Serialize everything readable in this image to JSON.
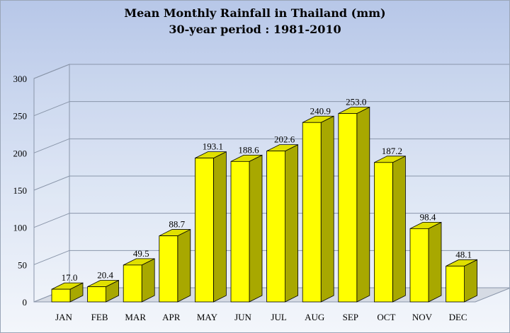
{
  "chart_data": {
    "type": "bar",
    "title": "Mean Monthly Rainfall in Thailand (mm)",
    "subtitle": "30-year period : 1981-2010",
    "categories": [
      "JAN",
      "FEB",
      "MAR",
      "APR",
      "MAY",
      "JUN",
      "JUL",
      "AUG",
      "SEP",
      "OCT",
      "NOV",
      "DEC"
    ],
    "values": [
      17.0,
      20.4,
      49.5,
      88.7,
      193.1,
      188.6,
      202.6,
      240.9,
      253.0,
      187.2,
      98.4,
      48.1
    ],
    "value_labels": [
      "17.0",
      "20.4",
      "49.5",
      "88.7",
      "193.1",
      "188.6",
      "202.6",
      "240.9",
      "253.0",
      "187.2",
      "98.4",
      "48.1"
    ],
    "xlabel": "",
    "ylabel": "",
    "ylim": [
      0,
      300
    ],
    "yticks": [
      "0",
      "50",
      "100",
      "150",
      "200",
      "250",
      "300"
    ],
    "grid": true,
    "bar_color": "#ffff00",
    "bar_side_color": "#a8a800",
    "bar_top_color": "#e0e000"
  }
}
